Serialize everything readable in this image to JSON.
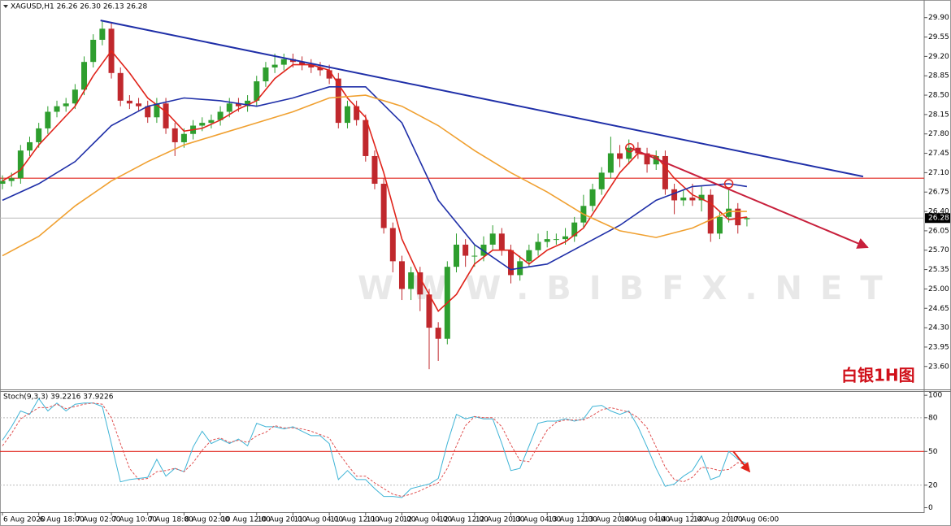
{
  "chart_data": {
    "type": "candlestick",
    "title": "XAGUSD,H1  26.26 26.30 26.13 26.28",
    "annotation": "白银1H图",
    "watermark": "WWW.BIBFX.NET",
    "up_color": "#2e9e2e",
    "down_color": "#c0282d",
    "categories": [
      "6 Aug 2020",
      null,
      null,
      null,
      "6 Aug 18:00",
      null,
      null,
      null,
      "7 Aug 02:00",
      null,
      null,
      null,
      "7 Aug 10:00",
      null,
      null,
      null,
      "7 Aug 18:00",
      null,
      null,
      null,
      "8 Aug 02:00",
      null,
      null,
      null,
      "10 Aug 12:00",
      null,
      null,
      null,
      "10 Aug 20:00",
      null,
      null,
      null,
      "11 Aug 04:00",
      null,
      null,
      null,
      "11 Aug 12:00",
      null,
      null,
      null,
      "11 Aug 20:00",
      null,
      null,
      null,
      "12 Aug 04:00",
      null,
      null,
      null,
      "12 Aug 12:00",
      null,
      null,
      null,
      "12 Aug 20:00",
      null,
      null,
      null,
      "13 Aug 04:00",
      null,
      null,
      null,
      "13 Aug 12:00",
      null,
      null,
      null,
      "13 Aug 20:00",
      null,
      null,
      null,
      "14 Aug 04:00",
      null,
      null,
      null,
      "14 Aug 12:00",
      null,
      null,
      null,
      "14 Aug 20:00",
      null,
      null,
      null,
      "17 Aug 06:00",
      null,
      null
    ],
    "open": [
      26.9,
      26.95,
      27.0,
      27.5,
      27.65,
      27.9,
      28.2,
      28.3,
      28.35,
      28.6,
      29.1,
      29.5,
      29.7,
      28.9,
      28.4,
      28.35,
      28.3,
      28.1,
      28.35,
      27.9,
      27.65,
      27.8,
      27.95,
      28.0,
      28.05,
      28.2,
      28.35,
      28.3,
      28.4,
      28.75,
      29.0,
      29.05,
      29.15,
      29.1,
      29.05,
      29.0,
      28.95,
      28.8,
      28.0,
      28.3,
      28.05,
      27.4,
      26.9,
      26.1,
      25.5,
      25.0,
      25.3,
      24.9,
      24.3,
      24.1,
      25.4,
      25.8,
      25.6,
      25.6,
      25.8,
      26.0,
      25.7,
      25.25,
      25.5,
      25.7,
      25.85,
      25.9,
      25.9,
      25.95,
      26.2,
      26.5,
      26.8,
      27.1,
      27.45,
      27.35,
      27.55,
      27.45,
      27.25,
      27.4,
      26.8,
      26.6,
      26.65,
      26.6,
      26.7,
      26.0,
      26.3,
      26.45,
      26.26
    ],
    "high": [
      27.05,
      27.1,
      27.6,
      27.75,
      28.0,
      28.3,
      28.4,
      28.45,
      28.7,
      29.2,
      29.6,
      29.85,
      29.8,
      29.0,
      28.5,
      28.45,
      28.4,
      28.45,
      28.45,
      28.0,
      27.9,
      28.05,
      28.1,
      28.15,
      28.3,
      28.45,
      28.45,
      28.5,
      28.85,
      29.1,
      29.25,
      29.25,
      29.25,
      29.2,
      29.15,
      29.1,
      29.05,
      28.9,
      28.4,
      28.4,
      28.15,
      27.5,
      27.0,
      26.2,
      25.6,
      25.4,
      25.4,
      25.0,
      24.4,
      25.5,
      26.0,
      25.9,
      25.8,
      25.95,
      26.15,
      26.1,
      25.8,
      25.6,
      25.8,
      26.0,
      26.05,
      26.0,
      26.1,
      26.3,
      26.7,
      26.9,
      27.2,
      27.75,
      27.6,
      27.7,
      27.65,
      27.55,
      27.5,
      27.5,
      26.9,
      26.8,
      26.9,
      26.85,
      26.8,
      26.4,
      26.8,
      26.55,
      26.3
    ],
    "low": [
      26.8,
      26.85,
      26.9,
      27.4,
      27.55,
      27.8,
      28.1,
      28.2,
      28.25,
      28.5,
      29.0,
      29.4,
      28.8,
      28.3,
      28.25,
      28.2,
      28.0,
      28.0,
      27.8,
      27.4,
      27.55,
      27.7,
      27.85,
      27.9,
      27.95,
      28.1,
      28.2,
      28.2,
      28.3,
      28.65,
      28.9,
      28.95,
      29.0,
      28.95,
      28.9,
      28.85,
      28.7,
      27.9,
      27.9,
      27.95,
      27.3,
      26.8,
      26.0,
      25.3,
      24.8,
      24.8,
      24.6,
      23.55,
      23.7,
      24.0,
      25.3,
      25.4,
      25.4,
      25.5,
      25.7,
      25.6,
      25.1,
      25.15,
      25.4,
      25.6,
      25.75,
      25.8,
      25.8,
      25.85,
      26.1,
      26.4,
      26.7,
      27.0,
      27.2,
      27.25,
      27.35,
      27.1,
      27.15,
      26.7,
      26.35,
      26.5,
      26.5,
      26.4,
      25.85,
      25.9,
      26.2,
      26.0,
      26.13
    ],
    "close": [
      26.95,
      27.0,
      27.5,
      27.65,
      27.9,
      28.2,
      28.3,
      28.35,
      28.6,
      29.1,
      29.5,
      29.7,
      28.9,
      28.4,
      28.35,
      28.3,
      28.1,
      28.35,
      27.9,
      27.65,
      27.8,
      27.95,
      28.0,
      28.05,
      28.2,
      28.35,
      28.3,
      28.4,
      28.75,
      29.0,
      29.05,
      29.15,
      29.1,
      29.05,
      29.0,
      28.95,
      28.8,
      28.0,
      28.3,
      28.05,
      27.4,
      26.9,
      26.1,
      25.5,
      25.0,
      25.3,
      24.9,
      24.3,
      24.1,
      25.4,
      25.8,
      25.6,
      25.6,
      25.8,
      26.0,
      25.7,
      25.25,
      25.5,
      25.7,
      25.85,
      25.9,
      25.9,
      25.95,
      26.2,
      26.5,
      26.8,
      27.1,
      27.45,
      27.35,
      27.55,
      27.45,
      27.25,
      27.4,
      26.8,
      26.6,
      26.65,
      26.6,
      26.7,
      26.0,
      26.3,
      26.45,
      26.15,
      26.28
    ],
    "ylim": [
      23.2,
      30.16
    ],
    "yticks": [
      {
        "value": 29.9,
        "label": "29.90"
      },
      29.55,
      {
        "value": 29.2,
        "label": "29.20"
      },
      28.85,
      {
        "value": 28.5,
        "label": "28.50"
      },
      28.15,
      {
        "value": 27.8,
        "label": "27.80"
      },
      27.45,
      {
        "value": 27.1,
        "label": "27.10"
      },
      26.75,
      {
        "value": 26.4,
        "label": "26.40"
      },
      26.05,
      {
        "value": 25.7,
        "label": "25.70"
      },
      25.35,
      {
        "value": 25.0,
        "label": "25.00"
      },
      24.65,
      {
        "value": 24.3,
        "label": "24.30"
      },
      23.95,
      {
        "value": 23.6,
        "label": "23.60"
      }
    ],
    "current_price": 26.28,
    "hlines": [
      {
        "value": 27.0,
        "color": "#e0241b"
      }
    ],
    "overlays": [
      {
        "color": "#e0241b",
        "x": [
          0,
          2,
          4,
          6,
          8,
          10,
          12,
          14,
          16,
          18,
          20,
          22,
          24,
          26,
          28,
          30,
          32,
          34,
          36,
          38,
          40,
          42,
          44,
          46,
          48,
          50,
          52,
          54,
          56,
          58,
          60,
          62,
          64,
          66,
          68,
          70,
          72,
          74,
          76,
          78,
          80,
          82
        ],
        "values": [
          26.95,
          27.15,
          27.6,
          27.95,
          28.3,
          28.85,
          29.3,
          28.9,
          28.45,
          28.2,
          27.85,
          27.9,
          28.05,
          28.25,
          28.4,
          28.8,
          29.05,
          29.05,
          28.95,
          28.45,
          28.1,
          27.1,
          25.9,
          25.2,
          24.6,
          24.9,
          25.45,
          25.7,
          25.7,
          25.45,
          25.7,
          25.85,
          26.1,
          26.6,
          27.1,
          27.45,
          27.4,
          27.0,
          26.7,
          26.55,
          26.25,
          26.3
        ]
      },
      {
        "color": "#1f2fa8",
        "x": [
          0,
          4,
          8,
          12,
          16,
          20,
          24,
          28,
          32,
          36,
          40,
          44,
          48,
          52,
          56,
          60,
          64,
          68,
          72,
          76,
          80,
          82
        ],
        "values": [
          26.6,
          26.9,
          27.3,
          27.95,
          28.3,
          28.45,
          28.4,
          28.3,
          28.45,
          28.65,
          28.65,
          28.0,
          26.6,
          25.8,
          25.35,
          25.45,
          25.8,
          26.15,
          26.6,
          26.85,
          26.9,
          26.85
        ]
      },
      {
        "color": "#f0a030",
        "x": [
          0,
          4,
          8,
          12,
          16,
          20,
          24,
          28,
          32,
          36,
          40,
          44,
          48,
          52,
          56,
          60,
          64,
          68,
          72,
          76,
          80,
          82
        ],
        "values": [
          25.6,
          25.95,
          26.5,
          26.95,
          27.3,
          27.6,
          27.8,
          28.0,
          28.2,
          28.45,
          28.5,
          28.3,
          27.95,
          27.5,
          27.1,
          26.75,
          26.35,
          26.05,
          25.93,
          26.1,
          26.4,
          26.4
        ]
      }
    ],
    "trendlines": [
      {
        "color": "#1f2fa8",
        "x": [
          10.8,
          94.8
        ],
        "values": [
          29.85,
          27.03
        ]
      },
      {
        "color": "#c8203c",
        "x": [
          69.1,
          95.3
        ],
        "values": [
          27.55,
          25.75
        ],
        "arrow": true
      }
    ],
    "circles": {
      "color": "#e0241b",
      "x": [
        69.1,
        80.0
      ],
      "values": [
        27.55,
        26.9
      ]
    },
    "stochastic": {
      "title": "Stoch(9,3,3) 39.2216 37.9226",
      "ylim": [
        -4,
        103
      ],
      "yticks": [
        100,
        80,
        50,
        20,
        0
      ],
      "dotted_levels": [
        80,
        20
      ],
      "level": 50,
      "level_color": "#e0241b",
      "series": [
        {
          "color": "#3fb4d6",
          "values": [
            60,
            72,
            86,
            83,
            97,
            86,
            93,
            86,
            92,
            93,
            93,
            90,
            57,
            23,
            25,
            26,
            27,
            43,
            28,
            35,
            32,
            54,
            68,
            57,
            61,
            57,
            61,
            55,
            75,
            72,
            72,
            70,
            72,
            68,
            64,
            64,
            57,
            25,
            33,
            25,
            25,
            17,
            10,
            10,
            9,
            17,
            19,
            21,
            26,
            57,
            83,
            79,
            81,
            79,
            79,
            57,
            33,
            35,
            55,
            75,
            77,
            77,
            79,
            77,
            79,
            90,
            91,
            86,
            83,
            86,
            72,
            54,
            35,
            19,
            21,
            28,
            33,
            46,
            25,
            28,
            50,
            43,
            39
          ]
        },
        {
          "color": "#e05050",
          "dashed": true,
          "values": [
            55,
            66,
            79,
            84,
            89,
            89,
            92,
            88,
            90,
            92,
            93,
            92,
            80,
            57,
            35,
            25,
            26,
            32,
            33,
            35,
            32,
            40,
            51,
            60,
            62,
            58,
            60,
            58,
            64,
            67,
            73,
            71,
            71,
            70,
            68,
            65,
            62,
            49,
            38,
            28,
            28,
            22,
            17,
            12,
            10,
            12,
            15,
            19,
            22,
            35,
            55,
            73,
            81,
            80,
            80,
            72,
            56,
            42,
            41,
            55,
            69,
            76,
            78,
            78,
            78,
            82,
            87,
            89,
            87,
            85,
            80,
            71,
            54,
            36,
            25,
            23,
            27,
            36,
            35,
            33,
            34,
            40,
            38
          ]
        }
      ],
      "arrow": {
        "color": "#e0241b",
        "x": [
          80.5,
          82.3
        ],
        "values": [
          50,
          32
        ]
      }
    }
  }
}
